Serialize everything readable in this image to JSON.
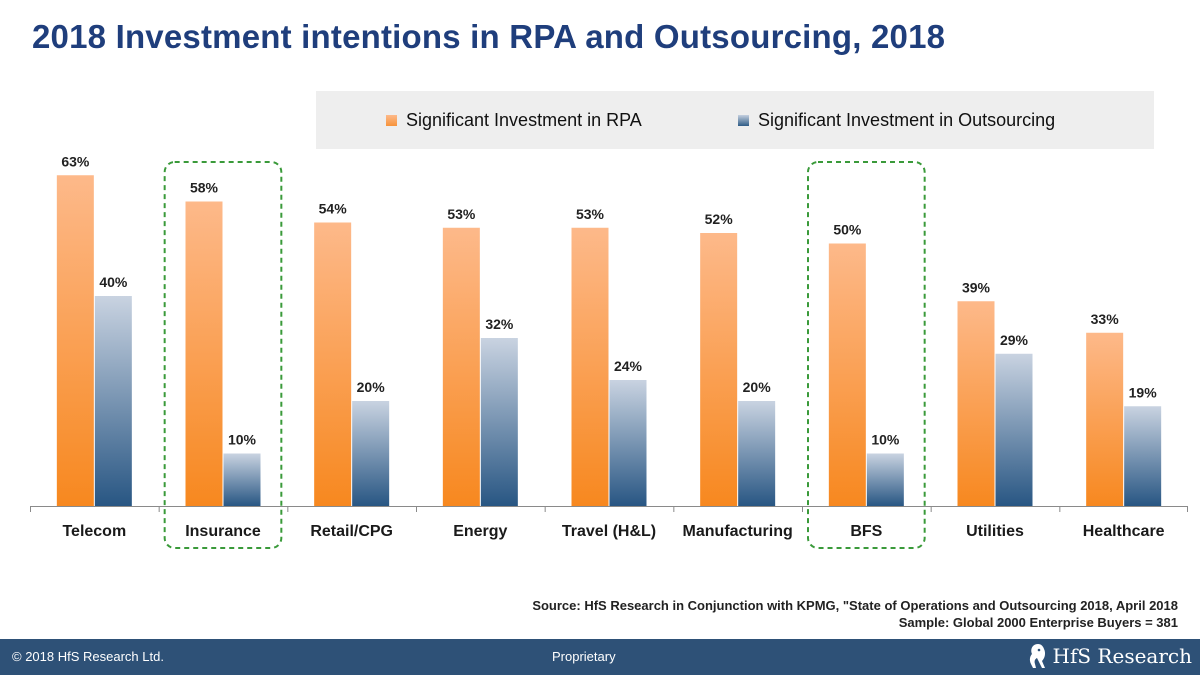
{
  "title": "2018 Investment intentions in RPA and Outsourcing, 2018",
  "colors": {
    "rpa": "#f7933a",
    "outsourcing": "#2e5b86",
    "title": "#1f3e7c",
    "highlight": "#3a9a3a",
    "footer": "#2e5177"
  },
  "chart_data": {
    "type": "bar",
    "categories": [
      "Telecom",
      "Insurance",
      "Retail/CPG",
      "Energy",
      "Travel (H&L)",
      "Manufacturing",
      "BFS",
      "Utilities",
      "Healthcare"
    ],
    "series": [
      {
        "name": "Significant Investment in RPA",
        "values": [
          63,
          58,
          54,
          53,
          53,
          52,
          50,
          39,
          33
        ]
      },
      {
        "name": "Significant Investment in Outsourcing",
        "values": [
          40,
          10,
          20,
          32,
          24,
          20,
          10,
          29,
          19
        ]
      }
    ],
    "value_suffix": "%",
    "ylim": [
      0,
      70
    ],
    "highlighted_categories": [
      "Insurance",
      "BFS"
    ],
    "legend_position": "top-right",
    "grid": false
  },
  "source": {
    "line1": "Source: HfS Research in Conjunction with KPMG, \"State of Operations and Outsourcing 2018, April 2018",
    "line2": "Sample: Global 2000 Enterprise Buyers = 381"
  },
  "footer": {
    "copyright": "© 2018 HfS Research Ltd.",
    "center": "Proprietary",
    "logo_text": "HfS Research"
  }
}
